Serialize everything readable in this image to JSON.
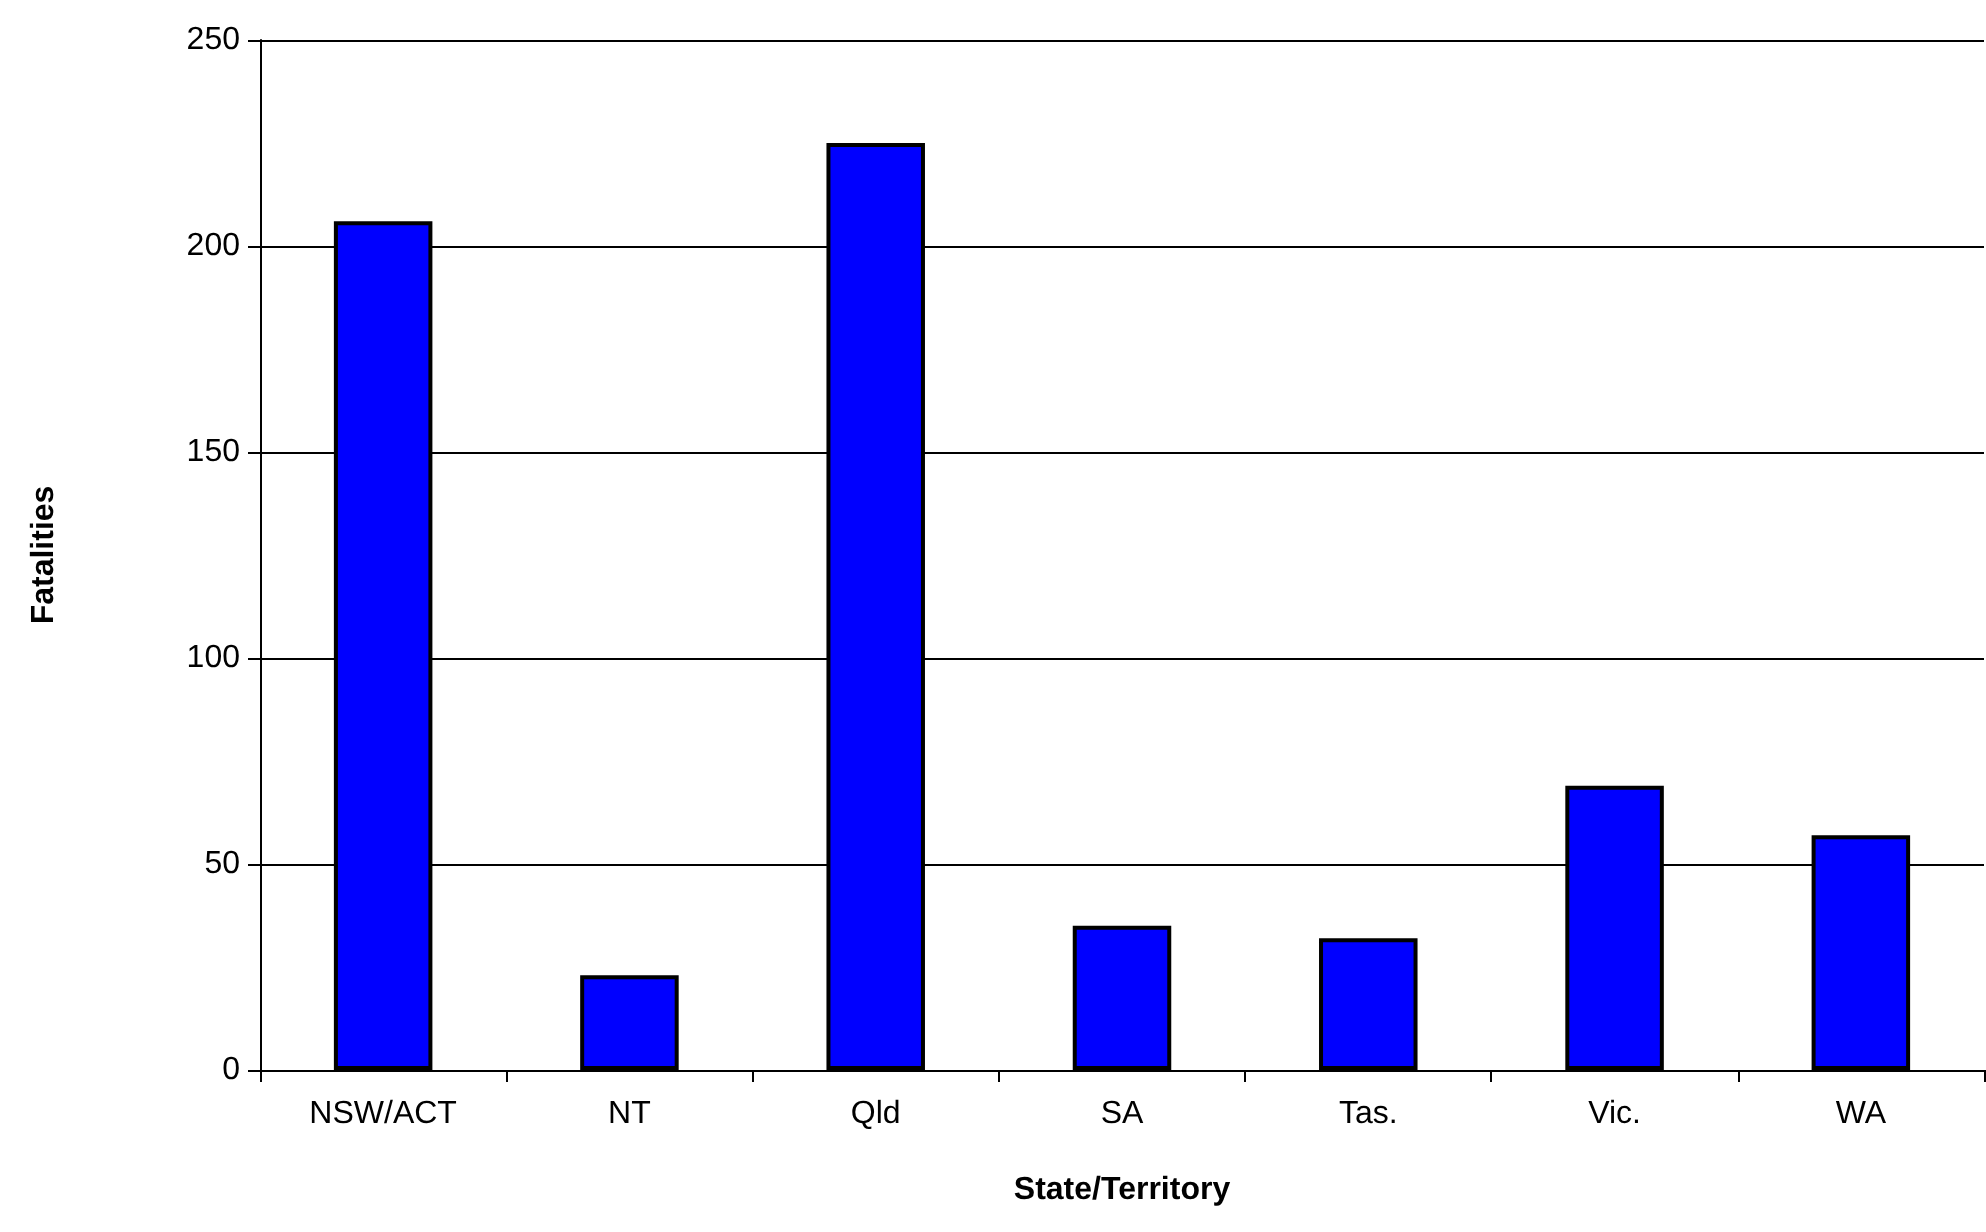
{
  "chart_data": {
    "type": "bar",
    "xlabel": "State/Territory",
    "ylabel": "Fatalities",
    "categories": [
      "NSW/ACT",
      "NT",
      "Qld",
      "SA",
      "Tas.",
      "Vic.",
      "WA"
    ],
    "values": [
      206,
      23,
      225,
      35,
      32,
      69,
      57
    ],
    "color": "#0000ff",
    "ylim": [
      0,
      250
    ],
    "yticks": [
      0,
      50,
      100,
      150,
      200,
      250
    ],
    "grid": "y"
  }
}
